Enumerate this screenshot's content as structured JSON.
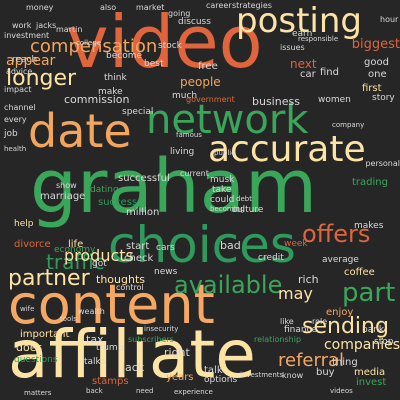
{
  "words": [
    {
      "text": "graham",
      "color": "#3aa65a"
    },
    {
      "text": "video",
      "color": "#e0643c"
    },
    {
      "text": "affiliate",
      "color": "#fde4a5"
    },
    {
      "text": "content",
      "color": "#f5a864"
    },
    {
      "text": "choices",
      "color": "#2e9a5c"
    },
    {
      "text": "date",
      "color": "#f2a55e"
    },
    {
      "text": "network",
      "color": "#3aa65a"
    },
    {
      "text": "accurate",
      "color": "#fde4a5"
    },
    {
      "text": "posting",
      "color": "#fde4a5"
    },
    {
      "text": "compensation",
      "color": "#f2a55e"
    },
    {
      "text": "longer",
      "color": "#fde4a5"
    },
    {
      "text": "traffic",
      "color": "#2e9a5c"
    },
    {
      "text": "partner",
      "color": "#fde4a5"
    },
    {
      "text": "available",
      "color": "#3aa65a"
    },
    {
      "text": "part",
      "color": "#3aa65a"
    },
    {
      "text": "offers",
      "color": "#e0643c"
    },
    {
      "text": "sending",
      "color": "#fde4a5"
    },
    {
      "text": "may",
      "color": "#fde4a5"
    },
    {
      "text": "products",
      "color": "#fde4a5"
    },
    {
      "text": "referral",
      "color": "#f5a864"
    },
    {
      "text": "companies",
      "color": "#fde4a5"
    },
    {
      "text": "appear",
      "color": "#f2a55e"
    },
    {
      "text": "biggest",
      "color": "#e0643c"
    },
    {
      "text": "commission",
      "color": "#d9d9d9"
    },
    {
      "text": "business",
      "color": "#d9d9d9"
    },
    {
      "text": "enjoy",
      "color": "#f5a864"
    },
    {
      "text": "successful",
      "color": "#d9d9d9"
    },
    {
      "text": "thoughts",
      "color": "#fde4a5"
    },
    {
      "text": "divorce",
      "color": "#e0643c"
    },
    {
      "text": "marriage",
      "color": "#d9d9d9"
    },
    {
      "text": "success",
      "color": "#2e9a5c"
    },
    {
      "text": "million",
      "color": "#d9d9d9"
    },
    {
      "text": "dating",
      "color": "#3aa65a"
    },
    {
      "text": "life",
      "color": "#fde4a5"
    },
    {
      "text": "got",
      "color": "#d9d9d9"
    },
    {
      "text": "check",
      "color": "#d9d9d9"
    },
    {
      "text": "news",
      "color": "#d9d9d9"
    },
    {
      "text": "economy",
      "color": "#3aa65a"
    },
    {
      "text": "tax",
      "color": "#d9d9d9"
    },
    {
      "text": "right",
      "color": "#d9d9d9"
    },
    {
      "text": "years",
      "color": "#f2a55e"
    },
    {
      "text": "jack",
      "color": "#d9d9d9"
    },
    {
      "text": "talk",
      "color": "#d9d9d9"
    },
    {
      "text": "options",
      "color": "#d9d9d9"
    },
    {
      "text": "trump",
      "color": "#d9d9d9"
    },
    {
      "text": "stamps",
      "color": "#e0643c"
    },
    {
      "text": "does",
      "color": "#fde4a5"
    },
    {
      "text": "important",
      "color": "#fde4a5"
    },
    {
      "text": "questions",
      "color": "#2e9a5c"
    },
    {
      "text": "talks",
      "color": "#d9d9d9"
    },
    {
      "text": "rich",
      "color": "#d9d9d9"
    },
    {
      "text": "coffee",
      "color": "#fde4a5"
    },
    {
      "text": "average",
      "color": "#d9d9d9"
    },
    {
      "text": "credit",
      "color": "#d9d9d9"
    },
    {
      "text": "makes",
      "color": "#d9d9d9"
    },
    {
      "text": "media",
      "color": "#fde4a5"
    },
    {
      "text": "thing",
      "color": "#d9d9d9"
    },
    {
      "text": "buy",
      "color": "#d9d9d9"
    },
    {
      "text": "invest",
      "color": "#3aa65a"
    },
    {
      "text": "finance",
      "color": "#d9d9d9"
    },
    {
      "text": "relationship",
      "color": "#3aa65a"
    },
    {
      "text": "bank",
      "color": "#d9d9d9"
    },
    {
      "text": "stop",
      "color": "#d9d9d9"
    },
    {
      "text": "role",
      "color": "#d9d9d9"
    },
    {
      "text": "like",
      "color": "#d9d9d9"
    },
    {
      "text": "bad",
      "color": "#d9d9d9"
    },
    {
      "text": "cars",
      "color": "#d9d9d9"
    },
    {
      "text": "start",
      "color": "#d9d9d9"
    },
    {
      "text": "help",
      "color": "#fde4a5"
    },
    {
      "text": "show",
      "color": "#d9d9d9"
    },
    {
      "text": "week",
      "color": "#e0643c"
    },
    {
      "text": "culture",
      "color": "#d9d9d9"
    },
    {
      "text": "could",
      "color": "#d9d9d9"
    },
    {
      "text": "take",
      "color": "#d9d9d9"
    },
    {
      "text": "living",
      "color": "#d9d9d9"
    },
    {
      "text": "people",
      "color": "#f2a55e"
    },
    {
      "text": "special",
      "color": "#d9d9d9"
    },
    {
      "text": "much",
      "color": "#d9d9d9"
    },
    {
      "text": "government",
      "color": "#e0643c"
    },
    {
      "text": "women",
      "color": "#d9d9d9"
    },
    {
      "text": "first",
      "color": "#fde4a5"
    },
    {
      "text": "story",
      "color": "#d9d9d9"
    },
    {
      "text": "car",
      "color": "#d9d9d9"
    },
    {
      "text": "find",
      "color": "#d9d9d9"
    },
    {
      "text": "next",
      "color": "#e0643c"
    },
    {
      "text": "good",
      "color": "#d9d9d9"
    },
    {
      "text": "one",
      "color": "#d9d9d9"
    },
    {
      "text": "free",
      "color": "#d9d9d9"
    },
    {
      "text": "best",
      "color": "#d9d9d9"
    },
    {
      "text": "make",
      "color": "#d9d9d9"
    },
    {
      "text": "think",
      "color": "#d9d9d9"
    },
    {
      "text": "become",
      "color": "#d9d9d9"
    },
    {
      "text": "stock",
      "color": "#d9d9d9"
    },
    {
      "text": "reach",
      "color": "#d9d9d9"
    },
    {
      "text": "advice",
      "color": "#d9d9d9"
    },
    {
      "text": "impact",
      "color": "#d9d9d9"
    },
    {
      "text": "channel",
      "color": "#d9d9d9"
    },
    {
      "text": "job",
      "color": "#d9d9d9"
    },
    {
      "text": "investment",
      "color": "#d9d9d9"
    },
    {
      "text": "earn",
      "color": "#d9d9d9"
    },
    {
      "text": "discuss",
      "color": "#d9d9d9"
    },
    {
      "text": "work",
      "color": "#d9d9d9"
    },
    {
      "text": "jacks",
      "color": "#d9d9d9"
    },
    {
      "text": "martin",
      "color": "#d9d9d9"
    },
    {
      "text": "also",
      "color": "#d9d9d9"
    },
    {
      "text": "market",
      "color": "#d9d9d9"
    },
    {
      "text": "money",
      "color": "#d9d9d9"
    },
    {
      "text": "going",
      "color": "#d9d9d9"
    },
    {
      "text": "career",
      "color": "#d9d9d9"
    },
    {
      "text": "strategies",
      "color": "#d9d9d9"
    },
    {
      "text": "hour",
      "color": "#d9d9d9"
    },
    {
      "text": "issues",
      "color": "#d9d9d9"
    },
    {
      "text": "college",
      "color": "#d9d9d9"
    },
    {
      "text": "musk",
      "color": "#d9d9d9"
    },
    {
      "text": "famous",
      "color": "#d9d9d9"
    },
    {
      "text": "personal",
      "color": "#d9d9d9"
    },
    {
      "text": "trading",
      "color": "#3aa65a"
    },
    {
      "text": "current",
      "color": "#d9d9d9"
    },
    {
      "text": "wealth",
      "color": "#d9d9d9"
    },
    {
      "text": "control",
      "color": "#d9d9d9"
    },
    {
      "text": "subscribers",
      "color": "#3aa65a"
    },
    {
      "text": "experience",
      "color": "#d9d9d9"
    },
    {
      "text": "videos",
      "color": "#d9d9d9"
    },
    {
      "text": "matters",
      "color": "#d9d9d9"
    },
    {
      "text": "know",
      "color": "#d9d9d9"
    },
    {
      "text": "need",
      "color": "#d9d9d9"
    },
    {
      "text": "every",
      "color": "#d9d9d9"
    },
    {
      "text": "health",
      "color": "#d9d9d9"
    },
    {
      "text": "wife",
      "color": "#d9d9d9"
    },
    {
      "text": "back",
      "color": "#d9d9d9"
    },
    {
      "text": "insecurity",
      "color": "#d9d9d9"
    },
    {
      "text": "investments",
      "color": "#d9d9d9"
    },
    {
      "text": "tools",
      "color": "#d9d9d9"
    },
    {
      "text": "company",
      "color": "#d9d9d9"
    },
    {
      "text": "public",
      "color": "#d9d9d9"
    },
    {
      "text": "debt",
      "color": "#d9d9d9"
    },
    {
      "text": "becoming",
      "color": "#d9d9d9"
    },
    {
      "text": "responsible",
      "color": "#d9d9d9"
    }
  ]
}
